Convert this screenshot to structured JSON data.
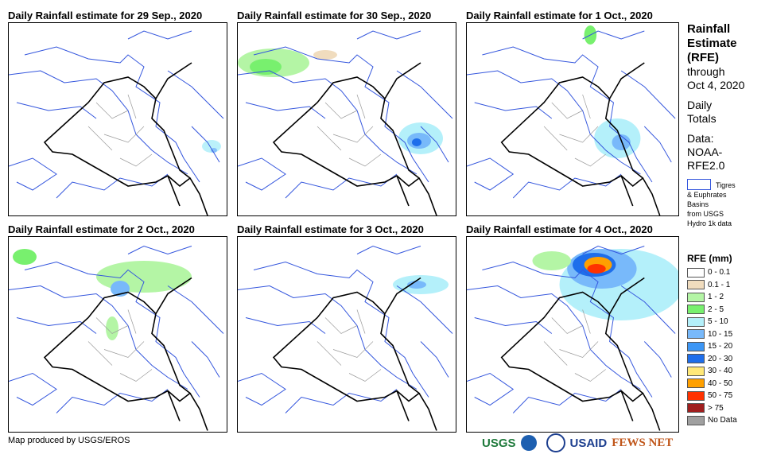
{
  "panels": [
    {
      "title": "Daily Rainfall estimate for 29 Sep., 2020"
    },
    {
      "title": "Daily Rainfall estimate for 30 Sep., 2020"
    },
    {
      "title": "Daily Rainfall estimate for 1 Oct., 2020"
    },
    {
      "title": "Daily Rainfall estimate for 2 Oct., 2020"
    },
    {
      "title": "Daily Rainfall estimate for 3 Oct., 2020"
    },
    {
      "title": "Daily Rainfall estimate for 4 Oct., 2020"
    }
  ],
  "side": {
    "h1": "Rainfall",
    "h2": "Estimate",
    "h3": "(RFE)",
    "t1": "through",
    "t2": "Oct 4, 2020",
    "d1": "Daily",
    "d2": "Totals",
    "s1": "Data:",
    "s2": "NOAA-",
    "s3": "RFE2.0",
    "basin1": "Tigres",
    "basin2": "& Euphrates",
    "basin3": "Basins",
    "basin4": "from USGS",
    "basin5": "Hydro 1k data"
  },
  "legend": {
    "title": "RFE (mm)",
    "items": [
      {
        "label": "0 - 0.1",
        "color": "#ffffff"
      },
      {
        "label": "0.1 - 1",
        "color": "#f0dcbe"
      },
      {
        "label": "1 - 2",
        "color": "#b4f5a5"
      },
      {
        "label": "2 - 5",
        "color": "#78f06e"
      },
      {
        "label": "5 - 10",
        "color": "#b4f0fa"
      },
      {
        "label": "10 - 15",
        "color": "#78b9fa"
      },
      {
        "label": "15 - 20",
        "color": "#3c96f5"
      },
      {
        "label": "20 - 30",
        "color": "#1e6eeb"
      },
      {
        "label": "30 - 40",
        "color": "#ffe878"
      },
      {
        "label": "40 - 50",
        "color": "#ffa000"
      },
      {
        "label": "50 - 75",
        "color": "#ff3200"
      },
      {
        "label": "> 75",
        "color": "#a01e1e"
      },
      {
        "label": "No Data",
        "color": "#a0a0a0"
      }
    ]
  },
  "footer": "Map produced by USGS/EROS",
  "logos": [
    "USGS",
    "NOAA",
    "USAID",
    "FEWS NET"
  ]
}
